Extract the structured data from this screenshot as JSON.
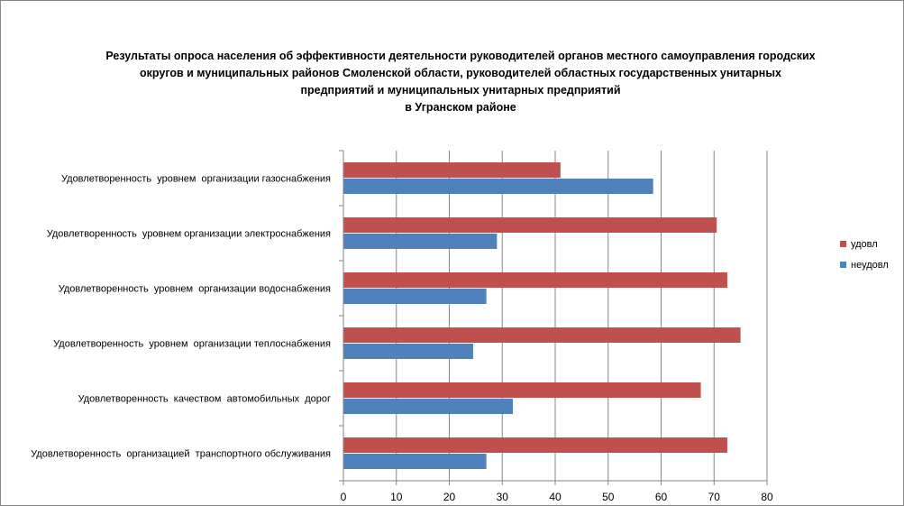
{
  "chart_data": {
    "type": "bar",
    "orientation": "horizontal",
    "title_lines": [
      "Результаты опроса населения об эффективности деятельности руководителей органов местного самоуправления городских",
      "округов и муниципальных районов Смоленской области, руководителей областных государственных унитарных",
      "предприятий и муниципальных унитарных предприятий",
      "в Угранском районе"
    ],
    "categories": [
      "Удовлетворенность  уровнем  организации газоснабжения",
      "Удовлетворенность  уровнем организации электроснабжения",
      "Удовлетворенность  уровнем  организации водоснабжения",
      "Удовлетворенность  уровнем  организации теплоснабжения",
      "Удовлетворенность  качеством  автомобильных  дорог",
      "Удовлетворенность  организацией  транспортного обслуживания"
    ],
    "series": [
      {
        "name": "удовл",
        "color": "#C0504D",
        "values": [
          41,
          70.5,
          72.5,
          75,
          67.5,
          72.5
        ]
      },
      {
        "name": "неудовл",
        "color": "#4F81BD",
        "values": [
          58.5,
          29,
          27,
          24.5,
          32,
          27
        ]
      }
    ],
    "xlim": [
      0,
      80
    ],
    "xticks": [
      0,
      10,
      20,
      30,
      40,
      50,
      60,
      70,
      80
    ],
    "grid": true,
    "legend": "right"
  }
}
